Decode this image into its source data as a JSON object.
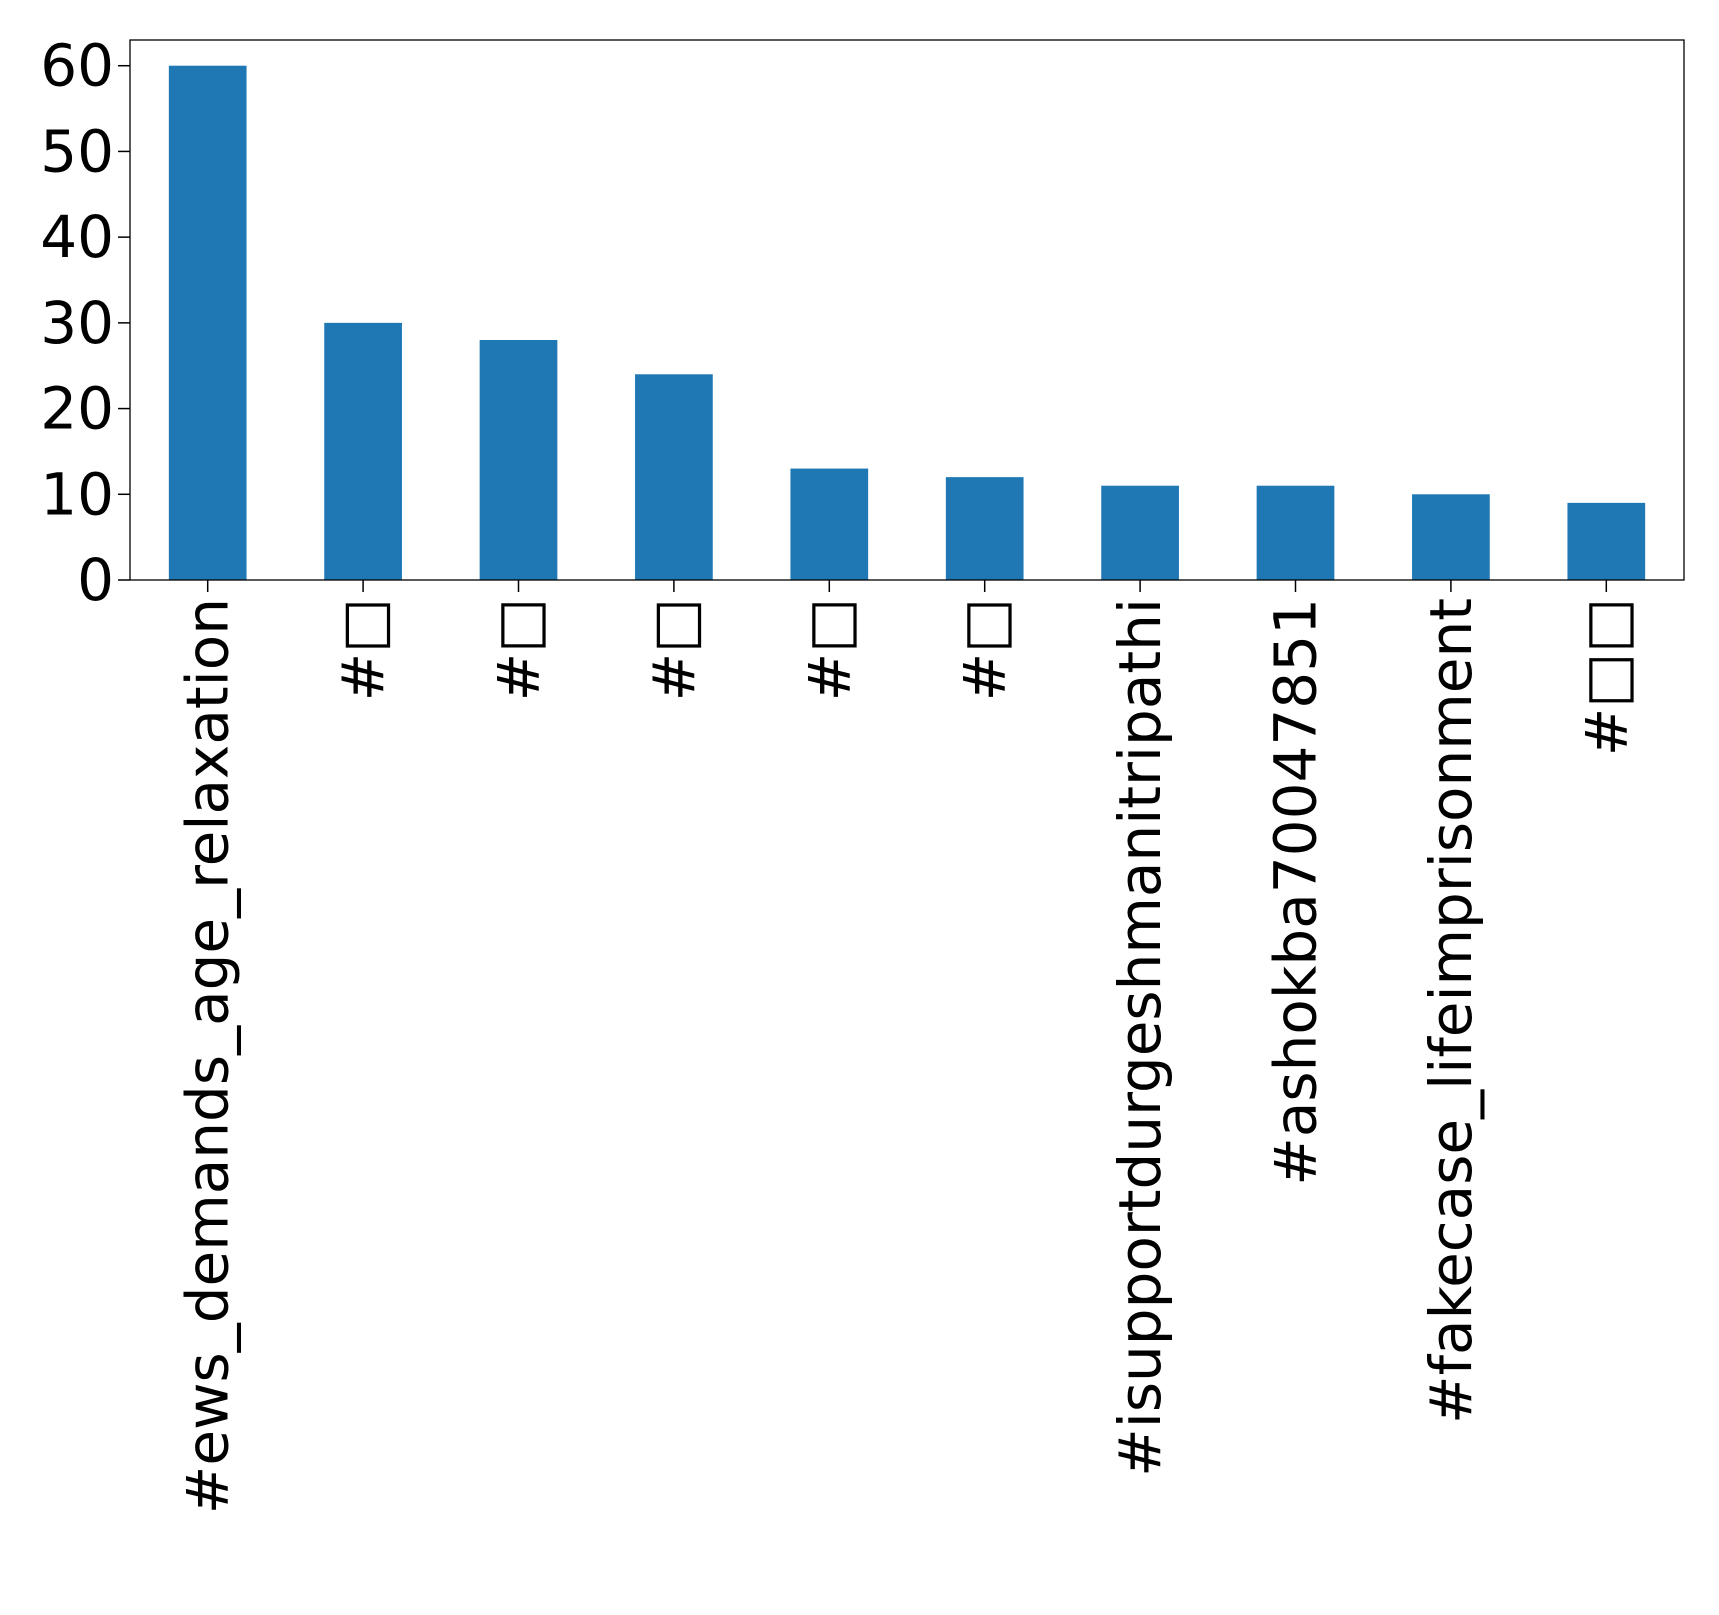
{
  "chart_data": {
    "type": "bar",
    "title": "",
    "xlabel": "",
    "ylabel": "",
    "categories": [
      "#ews_demands_age_relaxation",
      "#□",
      "#□",
      "#□",
      "#□",
      "#□",
      "#isupportdurgeshmanitripathi",
      "#ashokba70047851",
      "#fakecase_lifeimprisonment",
      "#□□"
    ],
    "values": [
      60,
      30,
      28,
      24,
      13,
      12,
      11,
      11,
      10,
      9
    ],
    "ylim": [
      0,
      63
    ],
    "yticks": [
      0,
      10,
      20,
      30,
      40,
      50,
      60
    ],
    "grid": false,
    "legend": "none",
    "colors": {
      "bar": "#1f77b4",
      "axis": "#000000"
    }
  }
}
